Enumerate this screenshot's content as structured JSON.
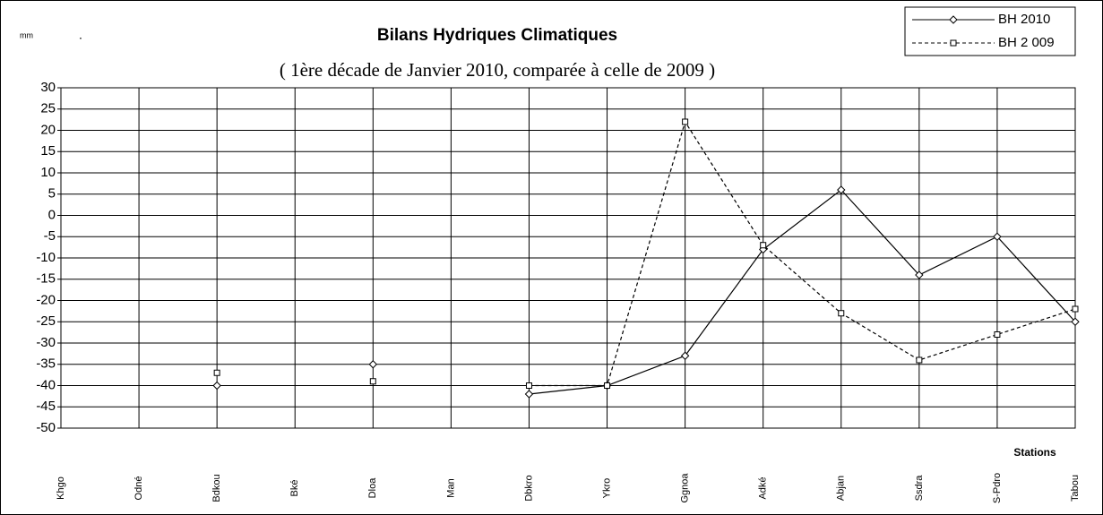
{
  "chart_data": {
    "type": "line",
    "title": "Bilans Hydriques Climatiques",
    "subtitle": "( 1ère  décade de Janvier  2010, comparée à celle de 2009 )",
    "unit_label": "mm",
    "dot": ".",
    "x_label": "Stations",
    "categories": [
      "Khgo",
      "Odné",
      "Bdkou",
      "Bké",
      "Dloa",
      "Man",
      "Dbkro",
      "Ykro",
      "Ggnoa",
      "Adké",
      "Abjan",
      "Ssdra",
      "S-Pdro",
      "Tabou"
    ],
    "series": [
      {
        "name": "BH 2010",
        "color": "#000000",
        "marker": "diamond",
        "dash": false,
        "values": [
          null,
          null,
          -40,
          null,
          -35,
          null,
          -42,
          -40,
          -33,
          -8,
          6,
          -14,
          -5,
          -25
        ]
      },
      {
        "name": "BH 2 009",
        "color": "#000000",
        "marker": "square",
        "dash": true,
        "values": [
          null,
          null,
          -37,
          null,
          -39,
          null,
          -40,
          -40,
          22,
          -7,
          -23,
          -34,
          -28,
          -22
        ]
      }
    ],
    "ylim": [
      -50,
      30
    ],
    "yticks": [
      -50,
      -45,
      -40,
      -35,
      -30,
      -25,
      -20,
      -15,
      -10,
      -5,
      0,
      5,
      10,
      15,
      20,
      25,
      30
    ],
    "grid": true,
    "legend": "top-right"
  }
}
